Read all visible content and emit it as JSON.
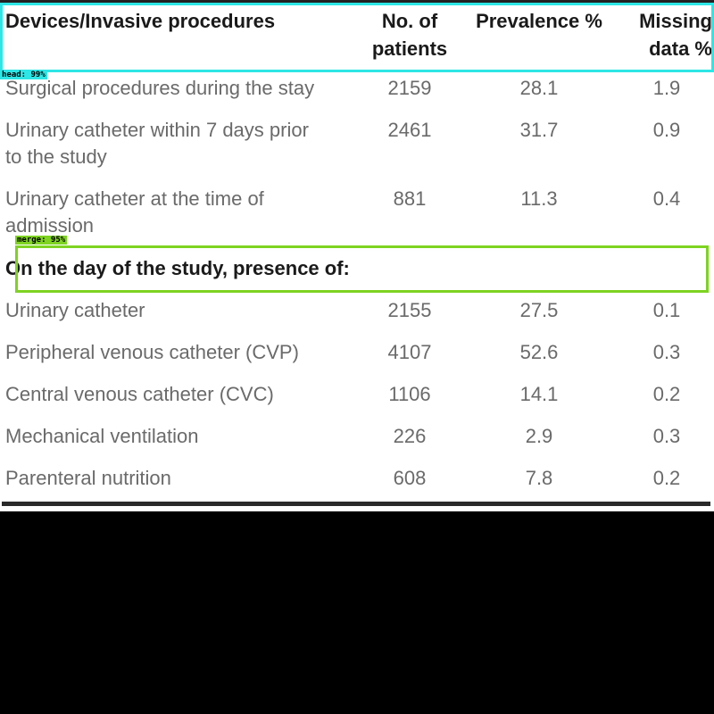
{
  "table": {
    "headers": [
      "Devices/Invasive procedures",
      "No. of\npatients",
      "Prevalence %",
      "Missing\ndata %"
    ],
    "rows_before": [
      {
        "name": "Surgical procedures during the stay",
        "patients": "2159",
        "prevalence": "28.1",
        "missing": "1.9"
      },
      {
        "name": "Urinary catheter within 7 days prior\nto the study",
        "patients": "2461",
        "prevalence": "31.7",
        "missing": "0.9"
      },
      {
        "name": "Urinary catheter at the time of\nadmission",
        "patients": "881",
        "prevalence": "11.3",
        "missing": "0.4"
      }
    ],
    "section_title": "On the day of the study, presence of:",
    "rows_after": [
      {
        "name": "Urinary catheter",
        "patients": "2155",
        "prevalence": "27.5",
        "missing": "0.1"
      },
      {
        "name": "Peripheral venous catheter (CVP)",
        "patients": "4107",
        "prevalence": "52.6",
        "missing": "0.3"
      },
      {
        "name": "Central venous catheter (CVC)",
        "patients": "1106",
        "prevalence": "14.1",
        "missing": "0.2"
      },
      {
        "name": "Mechanical ventilation",
        "patients": "226",
        "prevalence": "2.9",
        "missing": "0.3"
      },
      {
        "name": "Parenteral nutrition",
        "patients": "608",
        "prevalence": "7.8",
        "missing": "0.2"
      }
    ]
  },
  "overlays": {
    "head_label": "head: 99%",
    "merge_label": "merge: 95%",
    "head_color": "#2ee6e6",
    "merge_color": "#7ed321"
  }
}
